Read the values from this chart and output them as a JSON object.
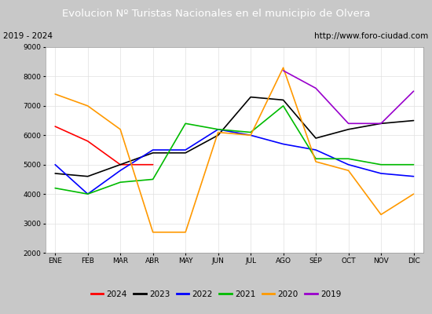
{
  "title": "Evolucion Nº Turistas Nacionales en el municipio de Olvera",
  "subtitle_left": "2019 - 2024",
  "subtitle_right": "http://www.foro-ciudad.com",
  "title_bg_color": "#4e7fc4",
  "title_text_color": "#ffffff",
  "months": [
    "ENE",
    "FEB",
    "MAR",
    "ABR",
    "MAY",
    "JUN",
    "JUL",
    "AGO",
    "SEP",
    "OCT",
    "NOV",
    "DIC"
  ],
  "ylim": [
    2000,
    9000
  ],
  "yticks": [
    2000,
    3000,
    4000,
    5000,
    6000,
    7000,
    8000,
    9000
  ],
  "series": {
    "2024": {
      "color": "#ff0000",
      "data": [
        6300,
        5800,
        5000,
        5000,
        null,
        null,
        null,
        null,
        null,
        null,
        null,
        null
      ]
    },
    "2023": {
      "color": "#000000",
      "data": [
        4700,
        4600,
        5000,
        5400,
        5400,
        6000,
        7300,
        7200,
        5900,
        6200,
        6400,
        6500
      ]
    },
    "2022": {
      "color": "#0000ff",
      "data": [
        5000,
        4000,
        4800,
        5500,
        5500,
        6200,
        6000,
        5700,
        5500,
        5000,
        4700,
        4600
      ]
    },
    "2021": {
      "color": "#00bb00",
      "data": [
        4200,
        4000,
        4400,
        4500,
        6400,
        6200,
        6100,
        7000,
        5200,
        5200,
        5000,
        5000
      ]
    },
    "2020": {
      "color": "#ff9900",
      "data": [
        7400,
        7000,
        6200,
        2700,
        2700,
        6100,
        6000,
        8300,
        5100,
        4800,
        3300,
        4000
      ]
    },
    "2019": {
      "color": "#9900cc",
      "data": [
        null,
        null,
        null,
        null,
        null,
        null,
        null,
        8200,
        7600,
        6400,
        6400,
        7500
      ]
    }
  },
  "legend_order": [
    "2024",
    "2023",
    "2022",
    "2021",
    "2020",
    "2019"
  ],
  "fig_bg_color": "#c8c8c8",
  "plot_bg_color": "#ffffff",
  "grid_color": "#e0e0e0",
  "subtitle_bg": "#ffffff",
  "border_color": "#000000"
}
